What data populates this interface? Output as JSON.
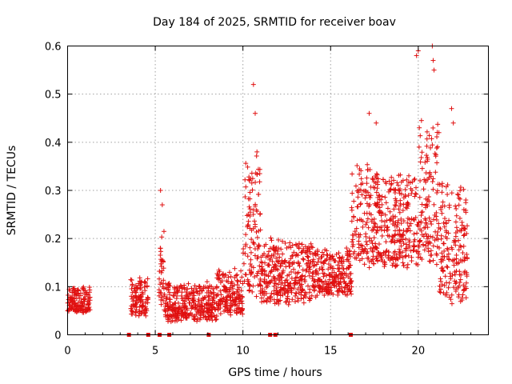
{
  "chart_data": {
    "type": "scatter",
    "title": "Day 184 of 2025, SRMTID for receiver boav",
    "xlabel": "GPS time / hours",
    "ylabel": "SRMTID / TECUs",
    "xlim": [
      0,
      24
    ],
    "ylim": [
      0,
      0.6
    ],
    "xticks": [
      0,
      5,
      10,
      15,
      20
    ],
    "xtick_labels": [
      "0",
      "5",
      "10",
      "15",
      "20"
    ],
    "yticks": [
      0,
      0.1,
      0.2,
      0.3,
      0.4,
      0.5,
      0.6
    ],
    "ytick_labels": [
      "0",
      "0.1",
      "0.2",
      "0.3",
      "0.4",
      "0.5",
      "0.6"
    ],
    "grid": true,
    "marker": "+",
    "color": "#e01010",
    "series_envelope": [
      {
        "x0": 0.0,
        "x1": 1.3,
        "lo": 0.04,
        "hi": 0.13
      },
      {
        "x0": 3.6,
        "x1": 4.6,
        "lo": 0.03,
        "hi": 0.16
      },
      {
        "x0": 5.2,
        "x1": 5.5,
        "lo": 0.04,
        "hi": 0.31
      },
      {
        "x0": 5.5,
        "x1": 8.5,
        "lo": 0.02,
        "hi": 0.15
      },
      {
        "x0": 8.5,
        "x1": 10.0,
        "lo": 0.03,
        "hi": 0.19
      },
      {
        "x0": 10.0,
        "x1": 11.0,
        "lo": 0.05,
        "hi": 0.52
      },
      {
        "x0": 11.0,
        "x1": 14.0,
        "lo": 0.05,
        "hi": 0.27
      },
      {
        "x0": 14.0,
        "x1": 16.2,
        "lo": 0.07,
        "hi": 0.23
      },
      {
        "x0": 16.2,
        "x1": 18.0,
        "lo": 0.12,
        "hi": 0.46
      },
      {
        "x0": 18.0,
        "x1": 20.0,
        "lo": 0.12,
        "hi": 0.44
      },
      {
        "x0": 20.0,
        "x1": 21.2,
        "lo": 0.12,
        "hi": 0.6
      },
      {
        "x0": 21.2,
        "x1": 22.8,
        "lo": 0.04,
        "hi": 0.47
      }
    ],
    "zero_markers_x": [
      3.5,
      4.6,
      5.25,
      5.8,
      8.05,
      11.55,
      11.85,
      16.15
    ],
    "spikes": [
      {
        "x": 5.3,
        "y": 0.3
      },
      {
        "x": 5.4,
        "y": 0.27
      },
      {
        "x": 10.6,
        "y": 0.52
      },
      {
        "x": 10.7,
        "y": 0.46
      },
      {
        "x": 10.8,
        "y": 0.38
      },
      {
        "x": 17.2,
        "y": 0.46
      },
      {
        "x": 17.6,
        "y": 0.44
      },
      {
        "x": 19.9,
        "y": 0.58
      },
      {
        "x": 20.0,
        "y": 0.59
      },
      {
        "x": 20.8,
        "y": 0.6
      },
      {
        "x": 20.85,
        "y": 0.57
      },
      {
        "x": 20.9,
        "y": 0.55
      },
      {
        "x": 21.9,
        "y": 0.47
      },
      {
        "x": 22.0,
        "y": 0.44
      }
    ]
  }
}
